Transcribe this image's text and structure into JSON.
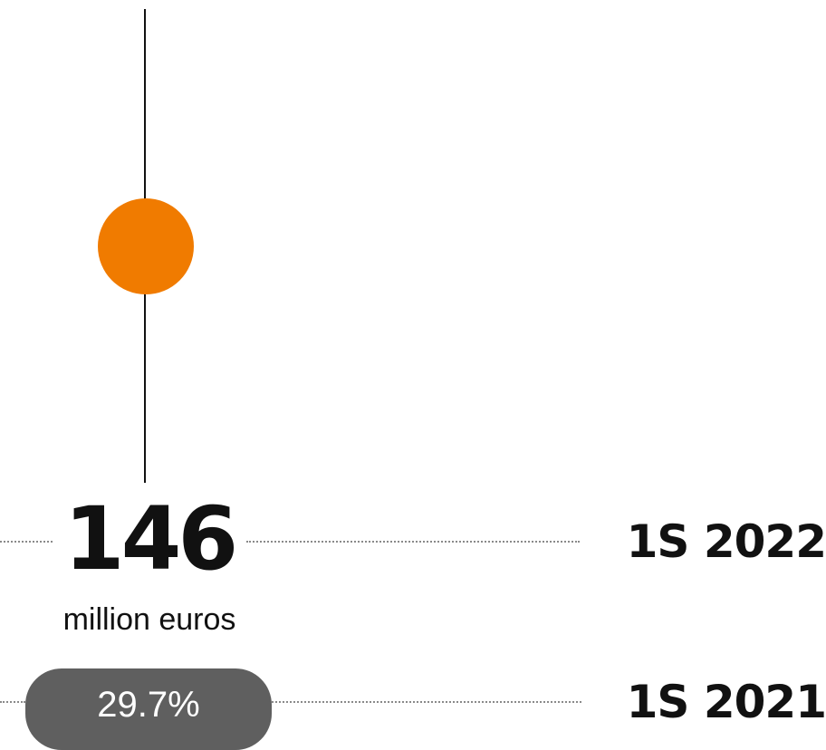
{
  "colors": {
    "marker": "#F07B00",
    "pill": "#5F5F5F",
    "text": "#111111"
  },
  "highlight": {
    "value": "146",
    "unit": "million euros",
    "period": "1S 2022"
  },
  "comparison": {
    "value": "29.7%",
    "period": "1S 2021"
  }
}
